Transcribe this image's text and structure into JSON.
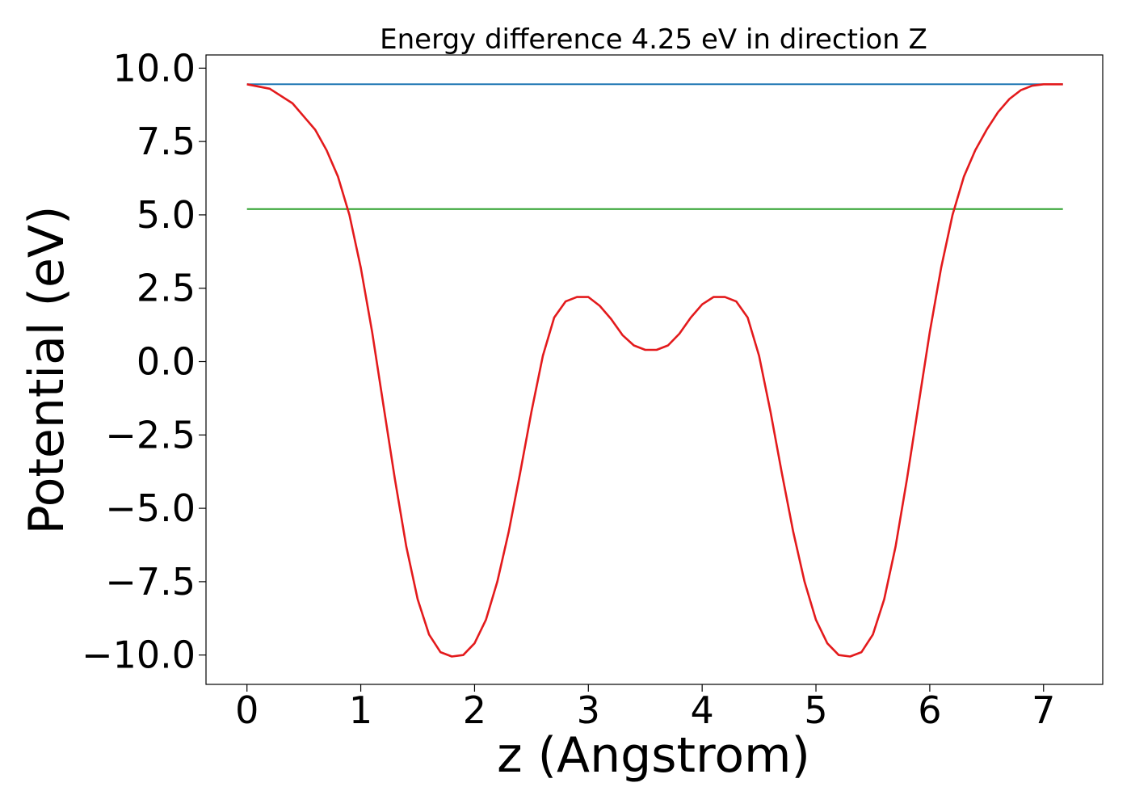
{
  "chart_data": {
    "type": "line",
    "title": "Energy difference 4.25 eV in direction Z",
    "xlabel": "z (Angstrom)",
    "ylabel": "Potential (eV)",
    "xlim": [
      -0.36,
      7.52
    ],
    "ylim": [
      -11.0,
      10.45
    ],
    "xticks": [
      0,
      1,
      2,
      3,
      4,
      5,
      6,
      7
    ],
    "xtick_labels": [
      "0",
      "1",
      "2",
      "3",
      "4",
      "5",
      "6",
      "7"
    ],
    "yticks": [
      10.0,
      7.5,
      5.0,
      2.5,
      0.0,
      -2.5,
      -5.0,
      -7.5,
      -10.0
    ],
    "ytick_labels": [
      "10.0",
      "7.5",
      "5.0",
      "2.5",
      "0.0",
      "−2.5",
      "−5.0",
      "−7.5",
      "−10.0"
    ],
    "grid": false,
    "series": [
      {
        "color": "#1f77b4",
        "x": [
          0.0,
          7.17
        ],
        "y": [
          9.45,
          9.45
        ]
      },
      {
        "color": "#2ca02c",
        "x": [
          0.0,
          7.17
        ],
        "y": [
          5.2,
          5.2
        ]
      },
      {
        "color": "#e31a1c",
        "x": [
          0.0,
          0.2,
          0.4,
          0.6,
          0.7,
          0.8,
          0.9,
          1.0,
          1.1,
          1.2,
          1.3,
          1.4,
          1.5,
          1.6,
          1.7,
          1.8,
          1.9,
          2.0,
          2.1,
          2.2,
          2.3,
          2.4,
          2.5,
          2.6,
          2.7,
          2.8,
          2.9,
          3.0,
          3.1,
          3.2,
          3.3,
          3.4,
          3.5,
          3.6,
          3.7,
          3.8,
          3.9,
          4.0,
          4.1,
          4.2,
          4.3,
          4.4,
          4.5,
          4.6,
          4.7,
          4.8,
          4.9,
          5.0,
          5.1,
          5.2,
          5.3,
          5.4,
          5.5,
          5.6,
          5.7,
          5.8,
          5.9,
          6.0,
          6.1,
          6.2,
          6.3,
          6.4,
          6.5,
          6.6,
          6.7,
          6.8,
          6.9,
          7.0,
          7.17
        ],
        "y": [
          9.45,
          9.3,
          8.8,
          7.9,
          7.2,
          6.3,
          5.0,
          3.2,
          1.0,
          -1.5,
          -4.0,
          -6.3,
          -8.1,
          -9.3,
          -9.9,
          -10.05,
          -10.0,
          -9.6,
          -8.8,
          -7.5,
          -5.8,
          -3.8,
          -1.7,
          0.2,
          1.5,
          2.05,
          2.2,
          2.2,
          1.9,
          1.45,
          0.9,
          0.55,
          0.4,
          0.4,
          0.55,
          0.95,
          1.5,
          1.95,
          2.2,
          2.2,
          2.05,
          1.5,
          0.2,
          -1.7,
          -3.8,
          -5.8,
          -7.5,
          -8.8,
          -9.6,
          -10.0,
          -10.05,
          -9.9,
          -9.3,
          -8.1,
          -6.3,
          -4.0,
          -1.5,
          1.0,
          3.2,
          5.0,
          6.3,
          7.2,
          7.9,
          8.5,
          8.95,
          9.25,
          9.4,
          9.45,
          9.45
        ]
      }
    ]
  }
}
